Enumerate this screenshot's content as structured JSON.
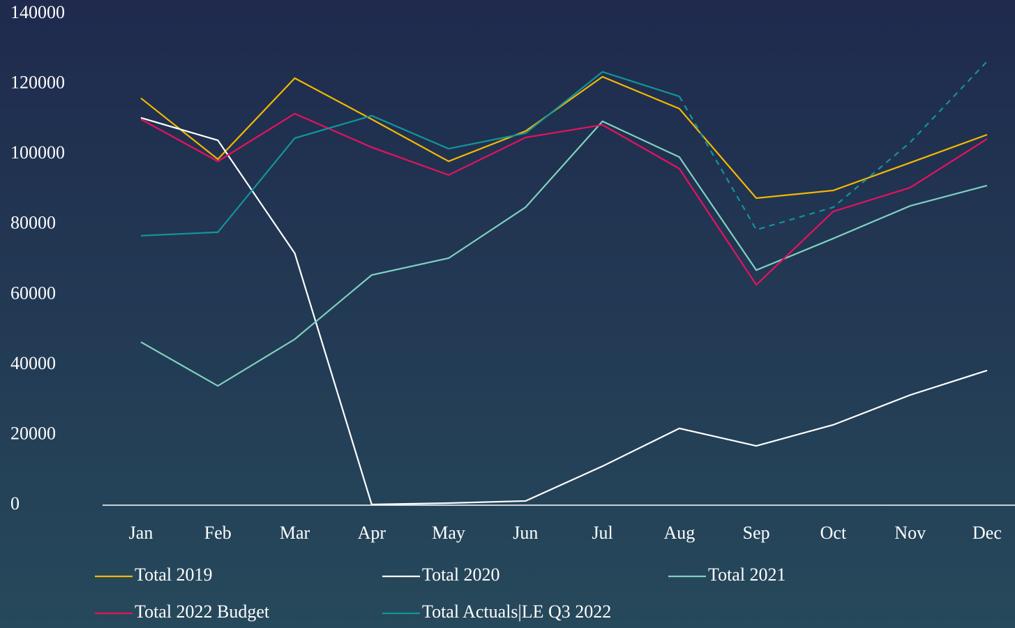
{
  "chart_data": {
    "type": "line",
    "categories": [
      "Jan",
      "Feb",
      "Mar",
      "Apr",
      "May",
      "Jun",
      "Jul",
      "Aug",
      "Sep",
      "Oct",
      "Nov",
      "Dec"
    ],
    "ylim": [
      0,
      140000
    ],
    "yticks": [
      0,
      20000,
      40000,
      60000,
      80000,
      100000,
      120000,
      140000
    ],
    "grid": false,
    "legend": "bottom",
    "series": [
      {
        "name": "Total 2019",
        "color": "#f5b800",
        "values": [
          116000,
          98600,
          121700,
          110000,
          98000,
          106600,
          122100,
          113000,
          87500,
          89700,
          97600,
          105600
        ]
      },
      {
        "name": "Total 2020",
        "color": "#ffffff",
        "values": [
          110400,
          104000,
          71800,
          200,
          600,
          1200,
          11100,
          21900,
          16900,
          22900,
          31400,
          38400
        ]
      },
      {
        "name": "Total 2021",
        "color": "#7fd1c0",
        "values": [
          46500,
          34000,
          47300,
          65600,
          70400,
          84900,
          109400,
          99200,
          67000,
          76000,
          85300,
          91100
        ]
      },
      {
        "name": "Total 2022 Budget",
        "color": "#e8115e",
        "values": [
          110000,
          98000,
          111600,
          102000,
          94100,
          104800,
          108400,
          95900,
          62800,
          83700,
          90500,
          104400
        ]
      },
      {
        "name": "Total Actuals|LE Q3 2022",
        "color": "#11959b",
        "dashed_after": "Aug",
        "values": [
          76800,
          77800,
          104600,
          111000,
          101600,
          106000,
          123500,
          116500,
          78500,
          84900,
          103400,
          126500
        ]
      }
    ]
  }
}
